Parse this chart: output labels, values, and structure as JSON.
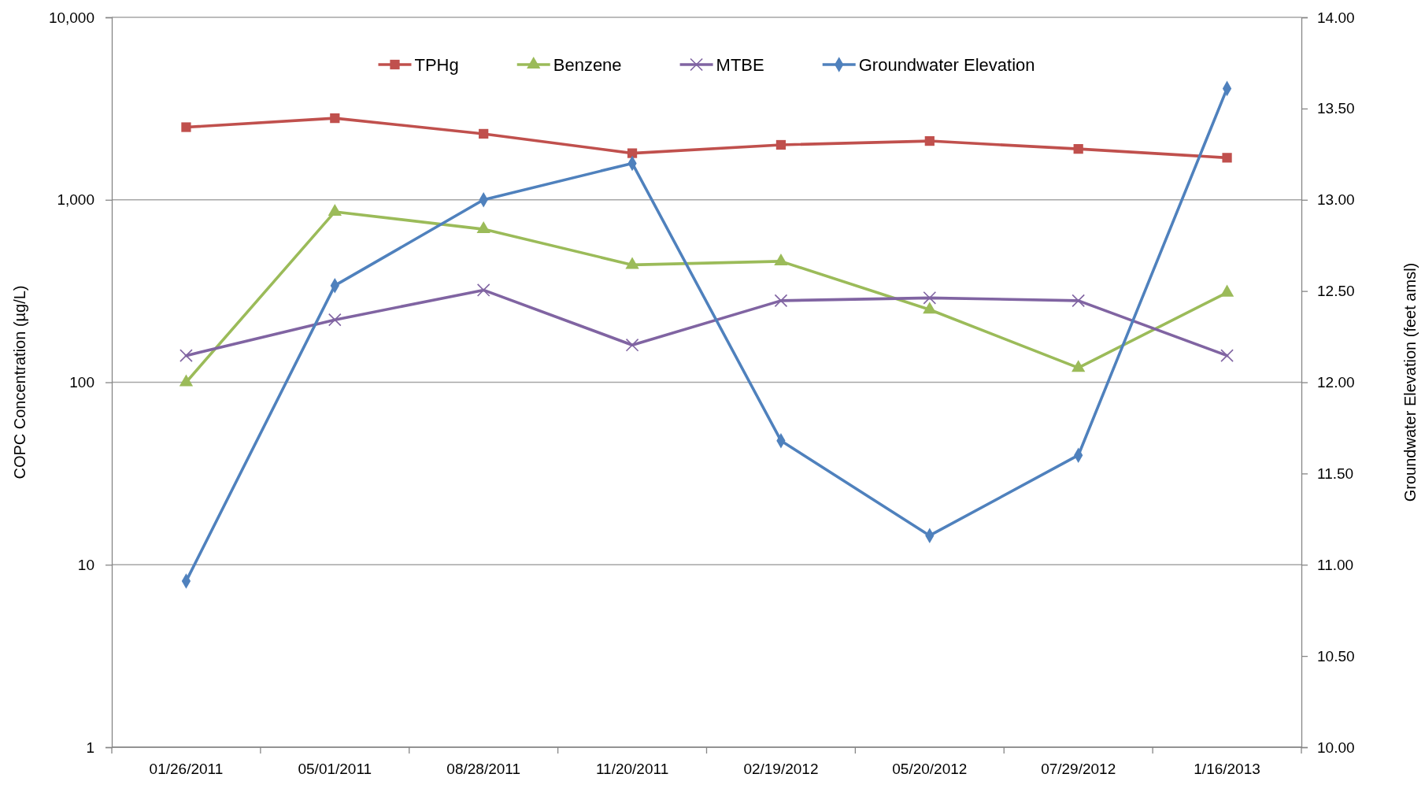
{
  "chart_data": {
    "type": "line",
    "categories": [
      "01/26/2011",
      "05/01/2011",
      "08/28/2011",
      "11/20/2011",
      "02/19/2012",
      "05/20/2012",
      "07/29/2012",
      "1/16/2013"
    ],
    "ylabel": "COPC Concentration (µg/L)",
    "y2label": "Groundwater Elevation (feet amsl)",
    "log": "y",
    "ylim": [
      1,
      10000
    ],
    "yticks": [
      1,
      10,
      100,
      {
        "value": 1000,
        "label": "1,000"
      },
      {
        "value": 10000,
        "label": "10,000"
      }
    ],
    "y2lim": [
      10,
      14
    ],
    "y2ticks": [
      {
        "value": 10,
        "label": "10.00"
      },
      {
        "value": 10.5,
        "label": "10.50"
      },
      {
        "value": 11,
        "label": "11.00"
      },
      {
        "value": 11.5,
        "label": "11.50"
      },
      {
        "value": 12,
        "label": "12.00"
      },
      {
        "value": 12.5,
        "label": "12.50"
      },
      {
        "value": 13,
        "label": "13.00"
      },
      {
        "value": 13.5,
        "label": "13.50"
      },
      {
        "value": 14,
        "label": "14.00"
      }
    ],
    "grid": "y",
    "legend": "top",
    "line_style": "solid",
    "series": [
      {
        "name": "TPHg",
        "color": "#c0504d",
        "marker": "square",
        "values": [
          2500,
          2800,
          2300,
          1800,
          2000,
          2100,
          1900,
          1700
        ]
      },
      {
        "name": "Benzene",
        "color": "#9bbb59",
        "marker": "triangle",
        "values": [
          100,
          860,
          690,
          440,
          460,
          250,
          120,
          310
        ]
      },
      {
        "name": "MTBE",
        "color": "#8064a2",
        "marker": "cross",
        "values": [
          140,
          220,
          320,
          160,
          280,
          290,
          280,
          140
        ]
      },
      {
        "name": "Groundwater Elevation",
        "color": "#4f81bd",
        "marker": "diamond",
        "axis": "y2",
        "values": [
          10.91,
          12.53,
          13.0,
          13.2,
          11.68,
          11.16,
          11.6,
          13.61
        ]
      }
    ]
  }
}
